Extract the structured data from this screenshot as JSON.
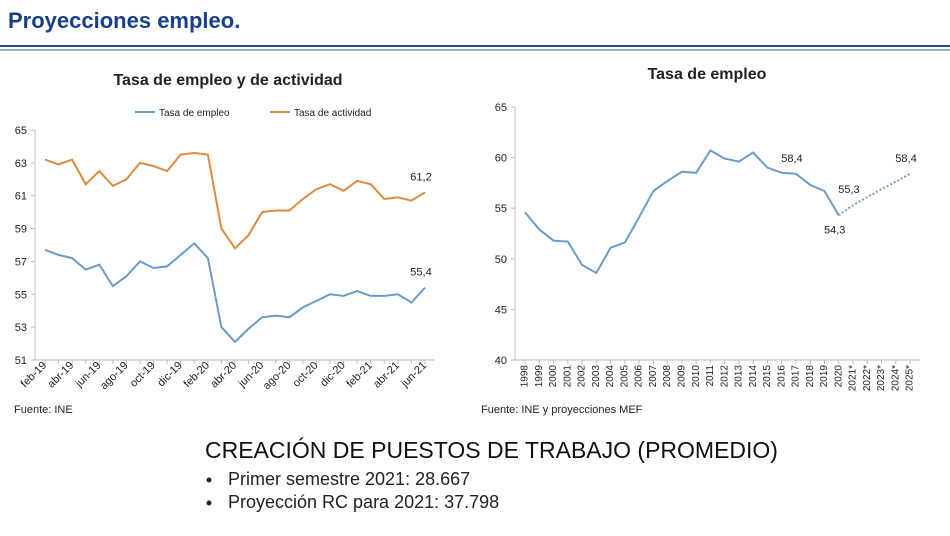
{
  "header": {
    "title": "Proyecciones empleo."
  },
  "chart_data": [
    {
      "type": "line",
      "title": "Tasa de empleo y de actividad",
      "source": "Fuente: INE",
      "categories": [
        "feb-19",
        null,
        "abr-19",
        null,
        "jun-19",
        null,
        "ago-19",
        null,
        "oct-19",
        null,
        "dic-19",
        null,
        "feb-20",
        null,
        "abr-20",
        null,
        "jun-20",
        null,
        "ago-20",
        null,
        "oct-20",
        null,
        "dic-20",
        null,
        "feb-21",
        null,
        "abr-21",
        null,
        "jun-21"
      ],
      "ylim": [
        51,
        65
      ],
      "yticks": [
        51,
        53,
        55,
        57,
        59,
        61,
        63,
        65
      ],
      "grid": false,
      "legend": "top",
      "series": [
        {
          "name": "Tasa de empleo",
          "color": "#6a9cc9",
          "values": [
            57.7,
            57.4,
            57.2,
            56.5,
            56.8,
            55.5,
            56.1,
            57.0,
            56.6,
            56.7,
            57.4,
            58.1,
            57.2,
            53.0,
            52.1,
            52.9,
            53.6,
            53.7,
            53.6,
            54.2,
            54.6,
            55.0,
            54.9,
            55.2,
            54.9,
            54.9,
            55.0,
            54.5,
            55.4
          ],
          "value_labels": [
            null,
            null,
            null,
            null,
            null,
            null,
            null,
            null,
            null,
            null,
            null,
            null,
            null,
            null,
            null,
            null,
            null,
            null,
            null,
            null,
            null,
            null,
            null,
            null,
            null,
            null,
            null,
            null,
            "55,4"
          ]
        },
        {
          "name": "Tasa de actividad",
          "color": "#e08a3c",
          "values": [
            63.2,
            62.9,
            63.2,
            61.7,
            62.5,
            61.6,
            62.0,
            63.0,
            62.8,
            62.5,
            63.5,
            63.6,
            63.5,
            59.0,
            57.8,
            58.6,
            60.0,
            60.1,
            60.1,
            60.8,
            61.4,
            61.7,
            61.3,
            61.9,
            61.7,
            60.8,
            60.9,
            60.7,
            61.2
          ],
          "value_labels": [
            null,
            null,
            null,
            null,
            null,
            null,
            null,
            null,
            null,
            null,
            null,
            null,
            null,
            null,
            null,
            null,
            null,
            null,
            null,
            null,
            null,
            null,
            null,
            null,
            null,
            null,
            null,
            null,
            "61,2"
          ]
        }
      ]
    },
    {
      "type": "line",
      "title": "Tasa de empleo",
      "source": "Fuente: INE y proyecciones MEF",
      "categories": [
        "1998",
        "1999",
        "2000",
        "2001",
        "2002",
        "2003",
        "2004",
        "2005",
        "2006",
        "2007",
        "2008",
        "2009",
        "2010",
        "2011",
        "2012",
        "2013",
        "2014",
        "2015",
        "2016",
        "2017",
        "2018",
        "2019",
        "2020",
        "2021*",
        "2022*",
        "2023*",
        "2024*",
        "2025*"
      ],
      "ylim": [
        40,
        65
      ],
      "yticks": [
        40,
        45,
        50,
        55,
        60,
        65
      ],
      "grid": false,
      "series": [
        {
          "color": "#6a9cc9",
          "style": "solid",
          "values": [
            54.6,
            52.9,
            51.8,
            51.7,
            49.4,
            48.6,
            51.1,
            51.6,
            54.1,
            56.7,
            57.7,
            58.6,
            58.5,
            60.7,
            59.9,
            59.6,
            60.5,
            59.0,
            58.5,
            58.4,
            57.3,
            56.7,
            54.3,
            null,
            null,
            null,
            null,
            null
          ],
          "value_labels": [
            null,
            null,
            null,
            null,
            null,
            null,
            null,
            null,
            null,
            null,
            null,
            null,
            null,
            null,
            null,
            null,
            null,
            null,
            null,
            "58,4",
            null,
            null,
            "54,3",
            null,
            null,
            null,
            null,
            null
          ]
        },
        {
          "color": "#7a9fb8",
          "style": "dotted",
          "values": [
            null,
            null,
            null,
            null,
            null,
            null,
            null,
            null,
            null,
            null,
            null,
            null,
            null,
            null,
            null,
            null,
            null,
            null,
            null,
            null,
            null,
            null,
            54.3,
            55.3,
            56.1,
            56.9,
            57.6,
            58.4
          ],
          "value_labels": [
            null,
            null,
            null,
            null,
            null,
            null,
            null,
            null,
            null,
            null,
            null,
            null,
            null,
            null,
            null,
            null,
            null,
            null,
            null,
            null,
            null,
            null,
            null,
            "55,3",
            null,
            null,
            null,
            "58,4"
          ]
        }
      ]
    }
  ],
  "summary": {
    "heading": "CREACIÓN DE PUESTOS DE TRABAJO (PROMEDIO)",
    "bullets": [
      "Primer semestre 2021: 28.667",
      "Proyección RC para 2021: 37.798"
    ]
  }
}
